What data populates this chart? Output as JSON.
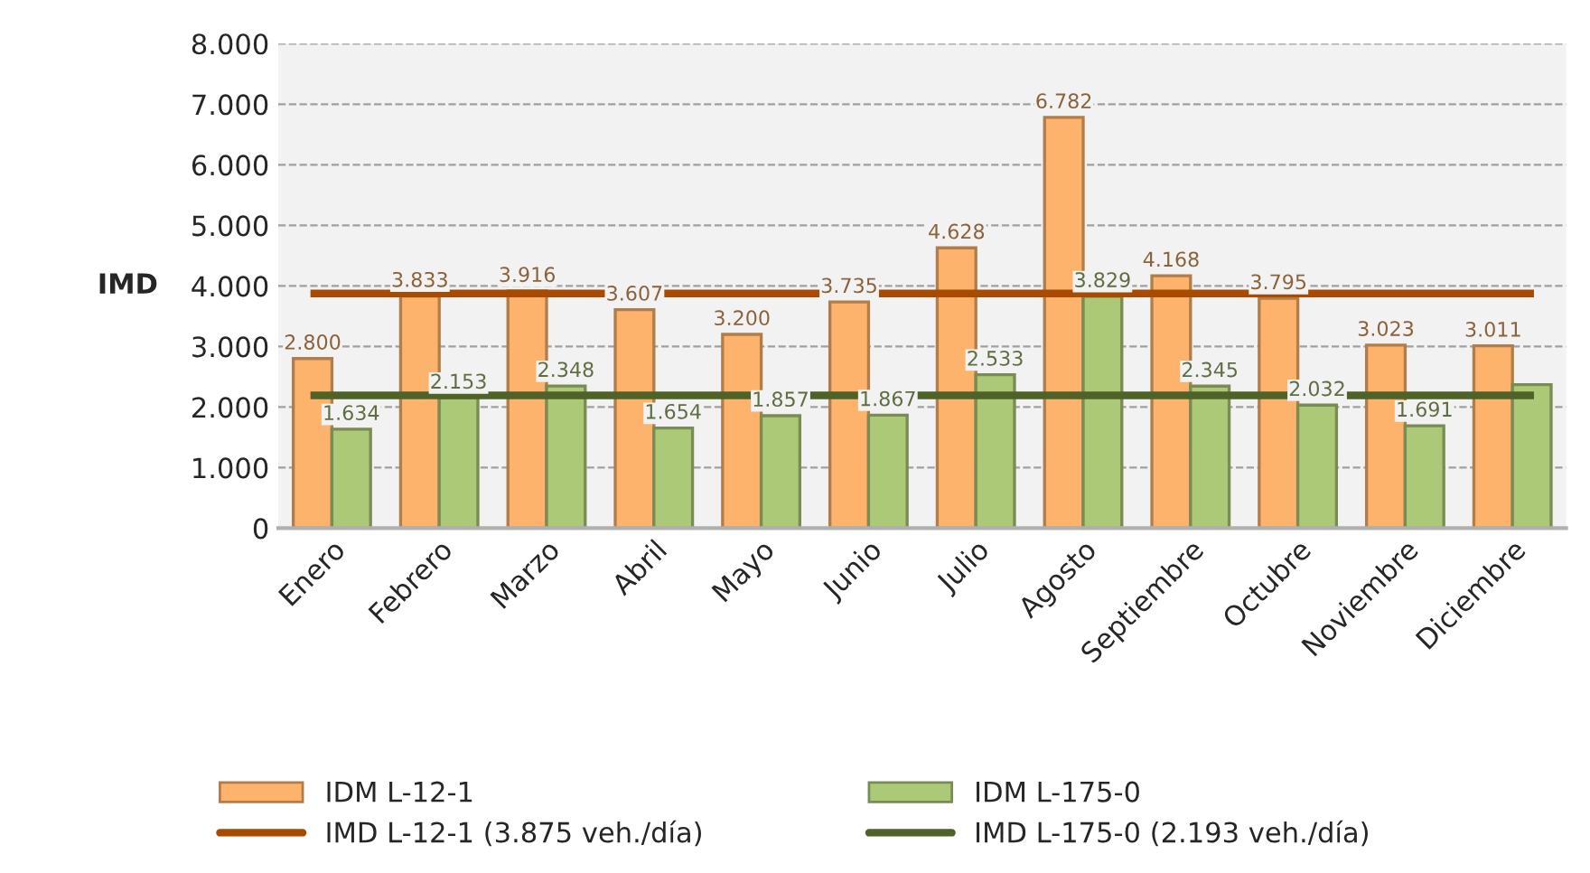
{
  "chart_data": {
    "type": "bar",
    "ylabel": "IMD",
    "categories": [
      "Enero",
      "Febrero",
      "Marzo",
      "Abril",
      "Mayo",
      "Junio",
      "Julio",
      "Agosto",
      "Septiembre",
      "Octubre",
      "Noviembre",
      "Diciembre"
    ],
    "series": [
      {
        "name": "IDM L-12-1",
        "color": "#fdb36b",
        "values": [
          2800,
          3833,
          3916,
          3607,
          3200,
          3735,
          4628,
          6782,
          4168,
          3795,
          3023,
          3011
        ],
        "value_labels": [
          "2.800",
          "3.833",
          "3.916",
          "3.607",
          "3.200",
          "3.735",
          "4.628",
          "6.782",
          "4.168",
          "3.795",
          "3.023",
          "3.011"
        ]
      },
      {
        "name": "IDM L-175-0",
        "color": "#acc978",
        "values": [
          1634,
          2153,
          2348,
          1654,
          1857,
          1867,
          2533,
          3829,
          2345,
          2032,
          1691,
          2370
        ],
        "value_labels": [
          "1.634",
          "2.153",
          "2.348",
          "1.654",
          "1.857",
          "1.867",
          "2.533",
          "3.829",
          "2.345",
          "2.032",
          "1.691",
          null
        ]
      }
    ],
    "ref_lines": [
      {
        "axis": "y",
        "value": 3875,
        "label": "IMD L-12-1 (3.875 veh./día)",
        "color": "#a84a00",
        "line_style": "solid"
      },
      {
        "axis": "y",
        "value": 2193,
        "label": "IMD L-175-0 (2.193 veh./día)",
        "color": "#4f6228",
        "line_style": "solid"
      }
    ],
    "ylim": [
      0,
      8000
    ],
    "yticks": [
      0,
      {
        "value": 1000,
        "label": "1.000"
      },
      {
        "value": 2000,
        "label": "2.000"
      },
      {
        "value": 3000,
        "label": "3.000"
      },
      {
        "value": 4000,
        "label": "4.000"
      },
      {
        "value": 5000,
        "label": "5.000"
      },
      {
        "value": 6000,
        "label": "6.000"
      },
      {
        "value": 7000,
        "label": "7.000"
      },
      {
        "value": 8000,
        "label": "8.000"
      }
    ],
    "grid": "y",
    "legend": "bottom"
  }
}
